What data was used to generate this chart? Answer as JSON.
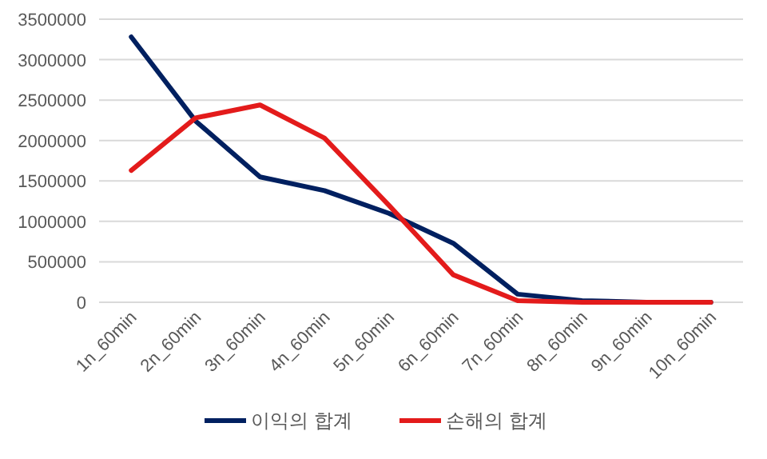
{
  "chart_data": {
    "type": "line",
    "categories": [
      "1n_60min",
      "2n_60min",
      "3n_60min",
      "4n_60min",
      "5n_60min",
      "6n_60min",
      "7n_60min",
      "8n_60min",
      "9n_60min",
      "10n_60min"
    ],
    "series": [
      {
        "name": "이익의 합계",
        "color": "#002060",
        "values": [
          3280000,
          2240000,
          1550000,
          1380000,
          1100000,
          730000,
          100000,
          20000,
          0,
          0
        ]
      },
      {
        "name": "손해의 합계",
        "color": "#e31b1b",
        "values": [
          1630000,
          2280000,
          2440000,
          2030000,
          1200000,
          340000,
          20000,
          0,
          0,
          0
        ]
      }
    ],
    "ylim": [
      0,
      3500000
    ],
    "yticks": [
      0,
      500000,
      1000000,
      1500000,
      2000000,
      2500000,
      3000000,
      3500000
    ],
    "grid": "y",
    "legend": "bottom",
    "marker": "none",
    "line_style": "solid"
  }
}
